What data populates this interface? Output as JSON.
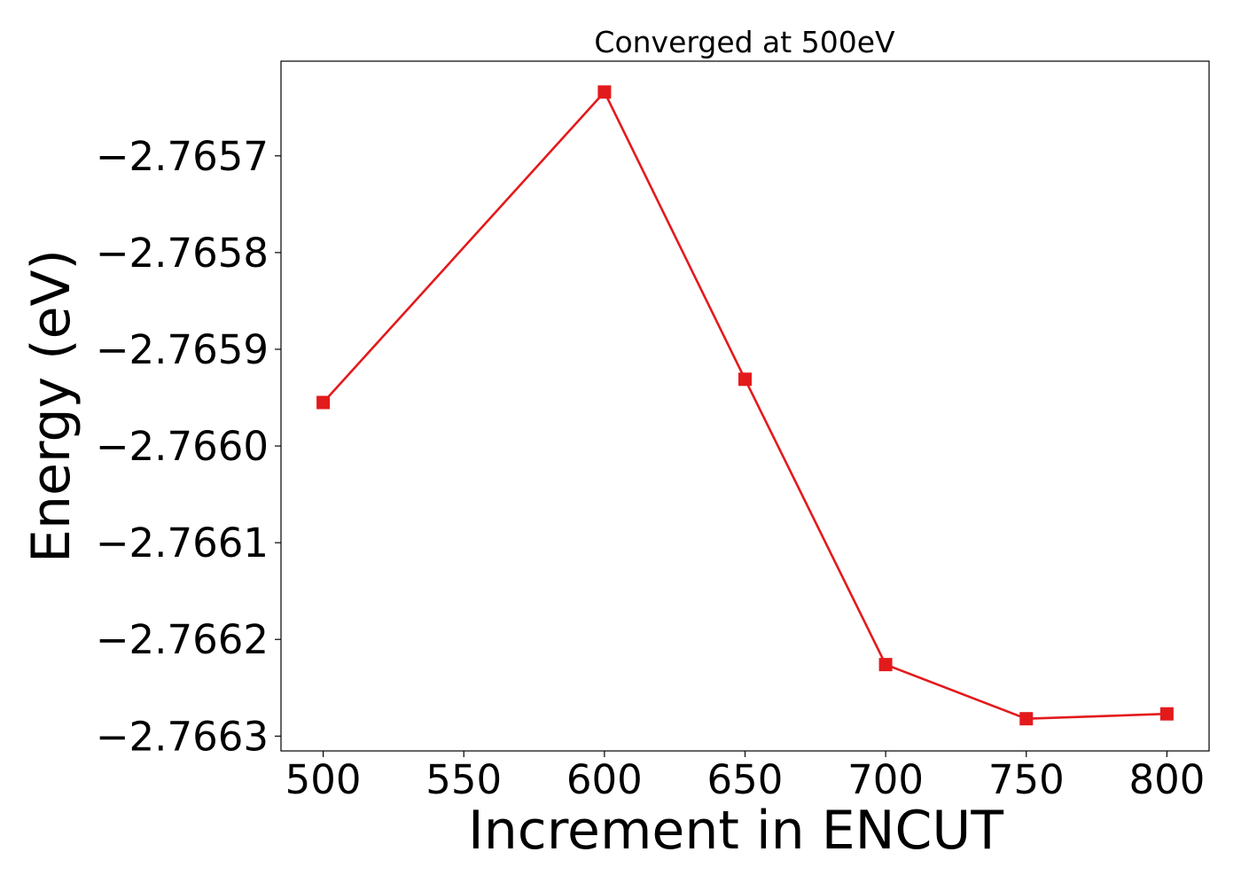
{
  "chart_data": {
    "type": "line",
    "title": "Converged at 500eV",
    "xlabel": "Increment in ENCUT",
    "ylabel": "Energy (eV)",
    "x": [
      500,
      600,
      650,
      700,
      750,
      800
    ],
    "series": [
      {
        "values": [
          -2.765955,
          -2.765634,
          -2.765931,
          -2.766226,
          -2.766282,
          -2.766277
        ],
        "color": "#e31a1c",
        "marker": "square"
      }
    ],
    "xticks": [
      500,
      550,
      600,
      650,
      700,
      750,
      800
    ],
    "xtick_labels": [
      "500",
      "550",
      "600",
      "650",
      "700",
      "750",
      "800"
    ],
    "yticks": [
      -2.7657,
      -2.7658,
      -2.7659,
      -2.766,
      -2.7661,
      -2.7662,
      -2.7663
    ],
    "ytick_labels": [
      "−2.7657",
      "−2.7658",
      "−2.7659",
      "−2.7660",
      "−2.7661",
      "−2.7662",
      "−2.7663"
    ],
    "xlim": [
      485,
      815
    ],
    "ylim": [
      -2.7663153,
      -2.7656021
    ],
    "grid": false,
    "legend": "none"
  }
}
